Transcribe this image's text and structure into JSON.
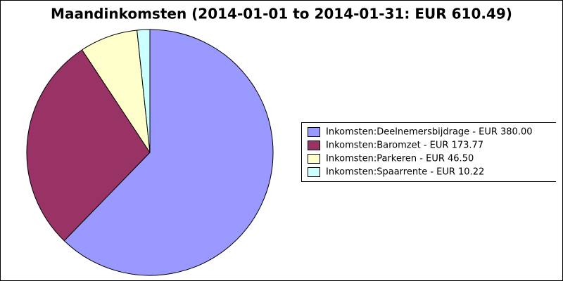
{
  "chart_data": {
    "type": "pie",
    "title": "Maandinkomsten (2014-01-01 to 2014-01-31: EUR 610.49)",
    "categories": [
      "Inkomsten:Deelnemersbijdrage - EUR 380.00",
      "Inkomsten:Baromzet - EUR 173.77",
      "Inkomsten:Parkeren - EUR 46.50",
      "Inkomsten:Spaarrente - EUR 10.22"
    ],
    "values": [
      380.0,
      173.77,
      46.5,
      10.22
    ],
    "colors": [
      "#9999ff",
      "#993366",
      "#ffffcc",
      "#ccffff"
    ],
    "legend": "right"
  }
}
